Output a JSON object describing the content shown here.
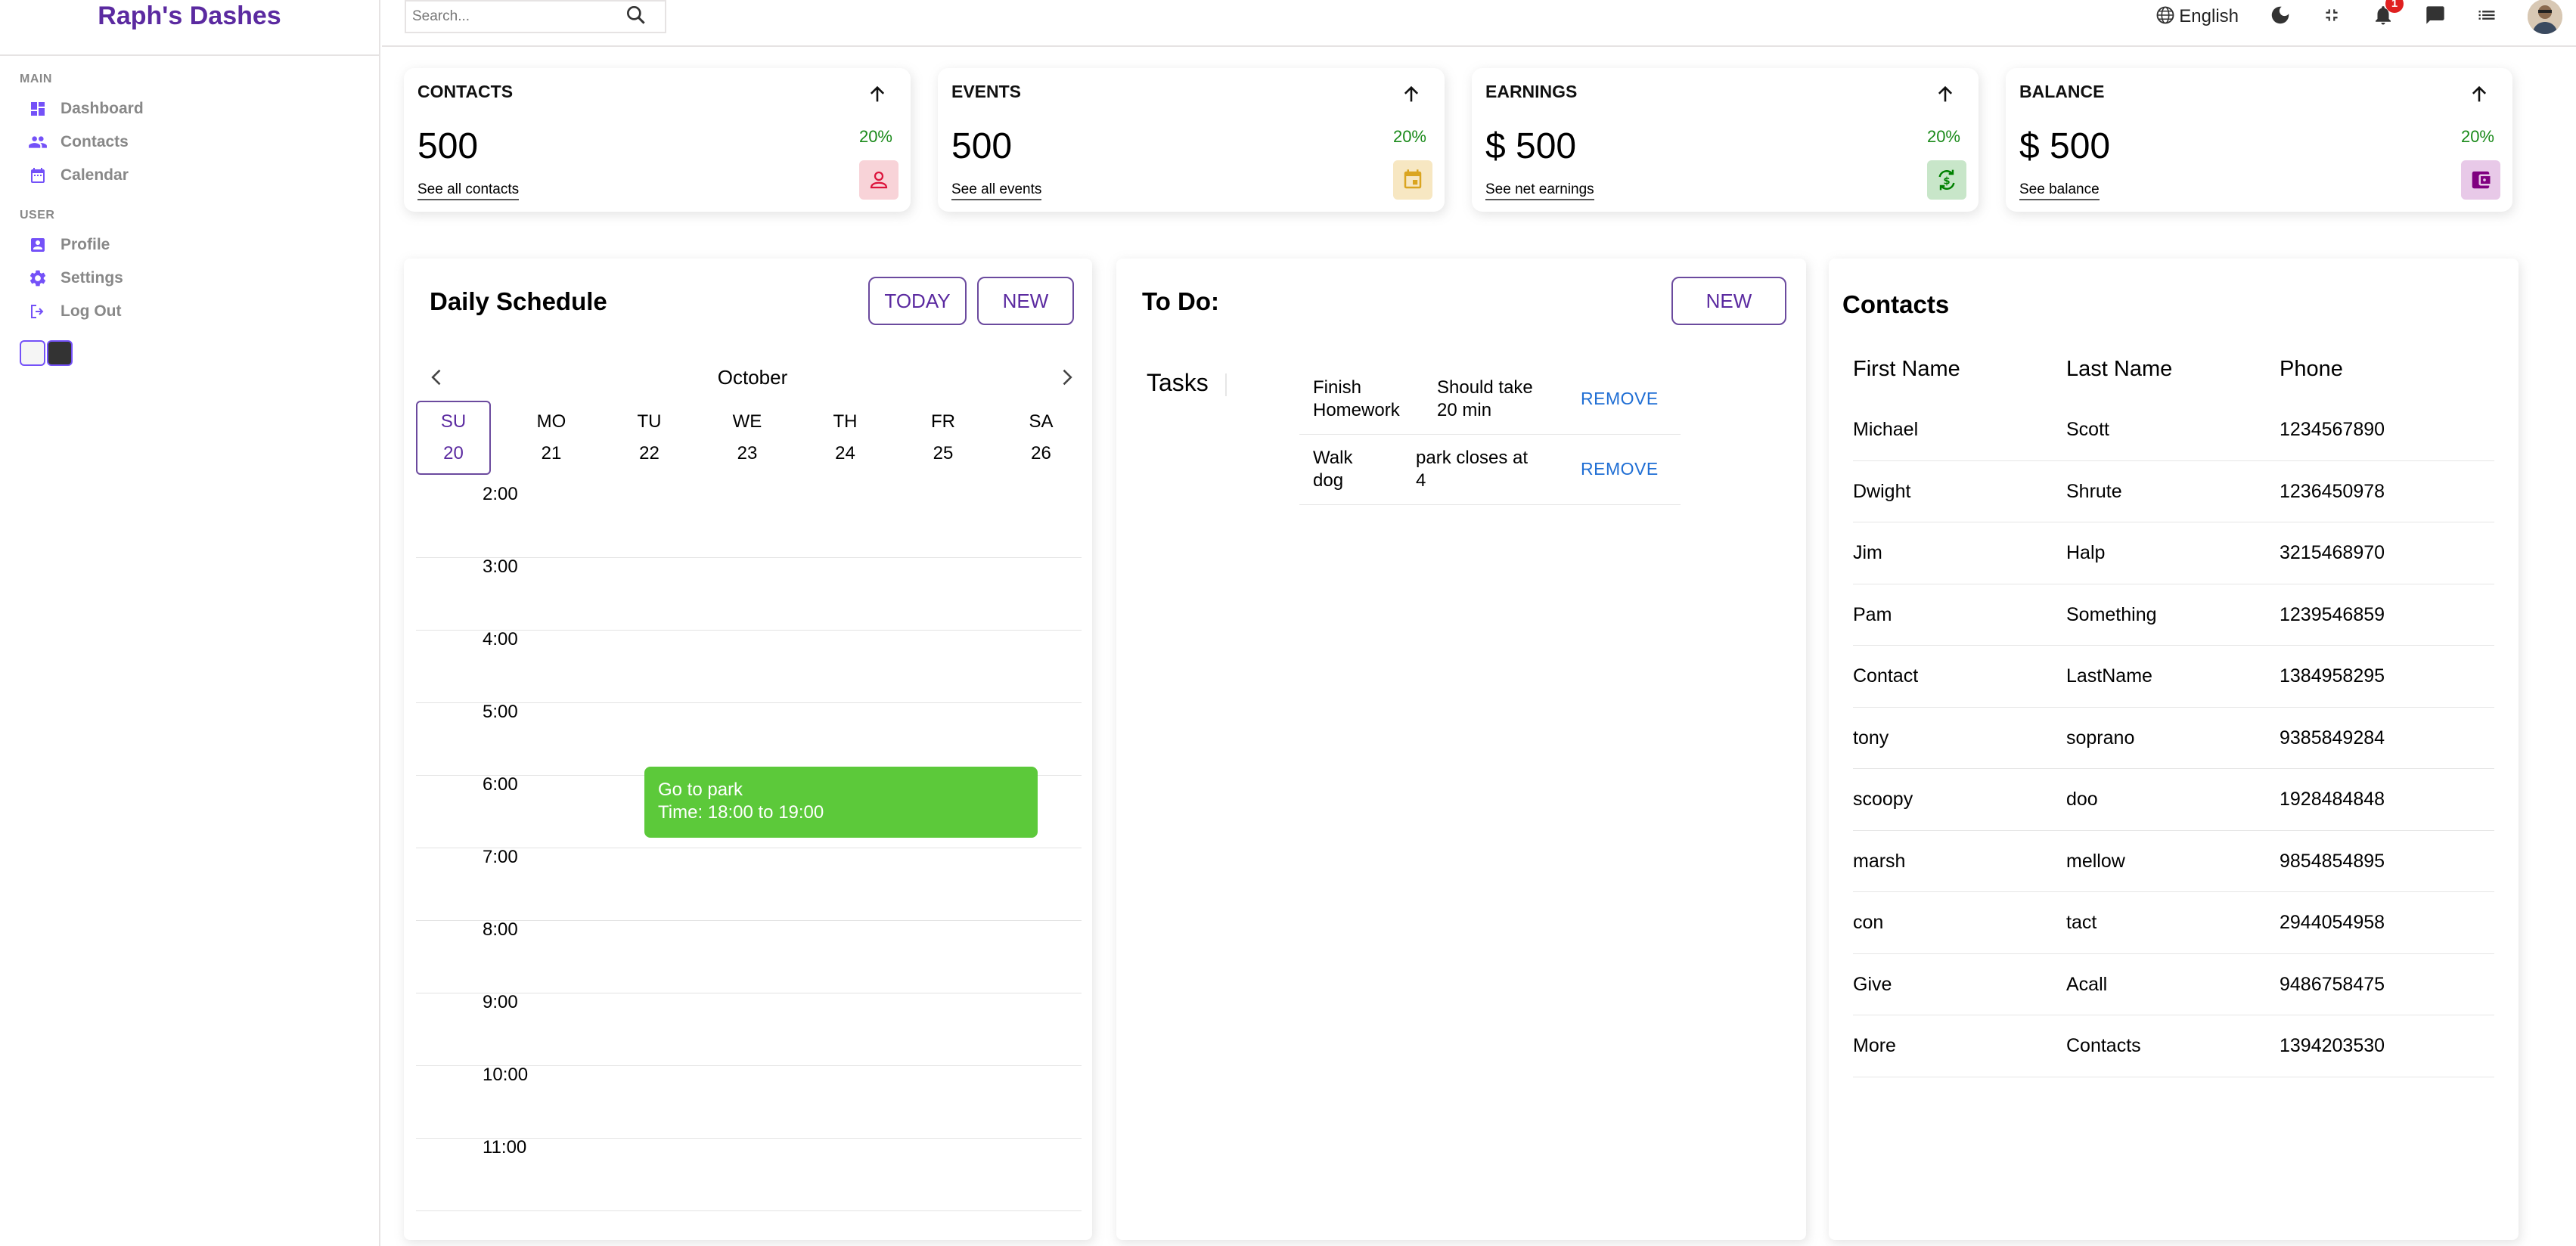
{
  "sidebar": {
    "logo": "Raph's Dashes",
    "sections": [
      {
        "title": "MAIN",
        "items": [
          {
            "label": "Dashboard",
            "icon": "dashboard-icon"
          },
          {
            "label": "Contacts",
            "icon": "people-icon"
          },
          {
            "label": "Calendar",
            "icon": "calendar-icon"
          }
        ]
      },
      {
        "title": "USER",
        "items": [
          {
            "label": "Profile",
            "icon": "account-box-icon"
          },
          {
            "label": "Settings",
            "icon": "gear-icon"
          },
          {
            "label": "Log Out",
            "icon": "logout-icon"
          }
        ]
      }
    ],
    "accent_color": "#7451f8"
  },
  "navbar": {
    "search_placeholder": "Search...",
    "language": "English",
    "notifications_count": "1"
  },
  "widgets": [
    {
      "title": "CONTACTS",
      "counter": "500",
      "link": "See all contacts",
      "percentage": "20%",
      "icon_color": "#dc143c",
      "icon_bg": "#f8d3d8"
    },
    {
      "title": "EVENTS",
      "counter": "500",
      "link": "See all events",
      "percentage": "20%",
      "icon_color": "#daa520",
      "icon_bg": "#f7e7c2"
    },
    {
      "title": "EARNINGS",
      "counter": "$ 500",
      "link": "See net earnings",
      "percentage": "20%",
      "icon_color": "#008000",
      "icon_bg": "#c8e6c9"
    },
    {
      "title": "BALANCE",
      "counter": "$ 500",
      "link": "See balance",
      "percentage": "20%",
      "icon_color": "#800080",
      "icon_bg": "#e8c9e8"
    }
  ],
  "schedule": {
    "title": "Daily Schedule",
    "today_label": "TODAY",
    "new_label": "NEW",
    "month": "October",
    "days": [
      {
        "name": "SU",
        "num": "20"
      },
      {
        "name": "MO",
        "num": "21"
      },
      {
        "name": "TU",
        "num": "22"
      },
      {
        "name": "WE",
        "num": "23"
      },
      {
        "name": "TH",
        "num": "24"
      },
      {
        "name": "FR",
        "num": "25"
      },
      {
        "name": "SA",
        "num": "26"
      }
    ],
    "slots": [
      "2:00",
      "3:00",
      "4:00",
      "5:00",
      "6:00",
      "7:00",
      "8:00",
      "9:00",
      "10:00",
      "11:00"
    ],
    "event": {
      "title": "Go to park",
      "time": "Time: 18:00 to 19:00",
      "color": "#5cc93a"
    }
  },
  "todo": {
    "title": "To Do:",
    "new_label": "NEW",
    "tasks_label": "Tasks",
    "remove_label": "REMOVE",
    "tasks": [
      {
        "name": "Finish Homework",
        "desc": "Should take 20 min"
      },
      {
        "name": "Walk dog",
        "desc": "park closes at 4"
      }
    ]
  },
  "contacts": {
    "title": "Contacts",
    "headers": [
      "First Name",
      "Last Name",
      "Phone"
    ],
    "rows": [
      [
        "Michael",
        "Scott",
        "1234567890"
      ],
      [
        "Dwight",
        "Shrute",
        "1236450978"
      ],
      [
        "Jim",
        "Halp",
        "3215468970"
      ],
      [
        "Pam",
        "Something",
        "1239546859"
      ],
      [
        "Contact",
        "LastName",
        "1384958295"
      ],
      [
        "tony",
        "soprano",
        "9385849284"
      ],
      [
        "scoopy",
        "doo",
        "1928484848"
      ],
      [
        "marsh",
        "mellow",
        "9854854895"
      ],
      [
        "con",
        "tact",
        "2944054958"
      ],
      [
        "Give",
        "Acall",
        "9486758475"
      ],
      [
        "More",
        "Contacts",
        "1394203530"
      ]
    ]
  }
}
